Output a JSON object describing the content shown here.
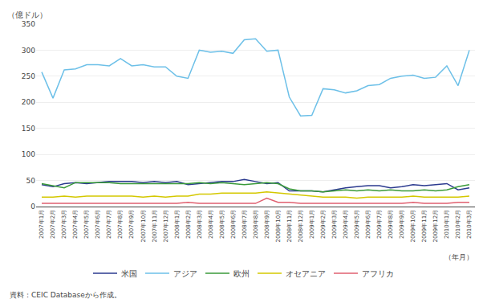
{
  "chart_data": {
    "type": "line",
    "y_label": "（億ドル）",
    "x_label": "（年月）",
    "source": "資料：CEIC Databaseから作成。",
    "ylim": [
      0,
      350
    ],
    "yticks": [
      0,
      50,
      100,
      150,
      200,
      250,
      300,
      350
    ],
    "grid": true,
    "legend": "bottom",
    "categories": [
      "2007年1月",
      "2007年2月",
      "2007年3月",
      "2007年4月",
      "2007年5月",
      "2007年6月",
      "2007年7月",
      "2007年8月",
      "2007年9月",
      "2007年10月",
      "2007年11月",
      "2007年12月",
      "2008年1月",
      "2008年2月",
      "2008年3月",
      "2008年4月",
      "2008年5月",
      "2008年6月",
      "2008年7月",
      "2008年8月",
      "2008年9月",
      "2008年10月",
      "2008年11月",
      "2008年12月",
      "2009年1月",
      "2009年2月",
      "2009年3月",
      "2009年4月",
      "2009年5月",
      "2009年6月",
      "2009年7月",
      "2009年8月",
      "2009年9月",
      "2009年10月",
      "2009年11月",
      "2009年12月",
      "2010年1月",
      "2010年2月",
      "2010年3月"
    ],
    "series": [
      {
        "name": "米国",
        "color": "#2b3a8f",
        "values": [
          42,
          38,
          44,
          46,
          44,
          46,
          48,
          48,
          48,
          46,
          48,
          46,
          48,
          42,
          44,
          46,
          48,
          48,
          52,
          48,
          44,
          46,
          30,
          30,
          30,
          28,
          32,
          36,
          38,
          40,
          40,
          36,
          38,
          42,
          40,
          42,
          44,
          32,
          36
        ]
      },
      {
        "name": "アジア",
        "color": "#6dc0e8",
        "values": [
          258,
          208,
          262,
          264,
          272,
          272,
          270,
          284,
          270,
          272,
          268,
          268,
          250,
          246,
          300,
          296,
          298,
          294,
          320,
          322,
          298,
          300,
          210,
          174,
          175,
          226,
          224,
          218,
          222,
          232,
          234,
          246,
          250,
          252,
          246,
          248,
          270,
          232,
          300
        ]
      },
      {
        "name": "欧州",
        "color": "#3a9a3a",
        "values": [
          44,
          40,
          36,
          46,
          46,
          46,
          46,
          44,
          44,
          44,
          44,
          44,
          44,
          44,
          46,
          44,
          46,
          44,
          42,
          44,
          46,
          44,
          34,
          30,
          30,
          28,
          30,
          32,
          30,
          32,
          30,
          32,
          30,
          30,
          32,
          30,
          32,
          38,
          42
        ]
      },
      {
        "name": "オセアニア",
        "color": "#d4c800",
        "values": [
          18,
          18,
          20,
          18,
          20,
          20,
          20,
          20,
          20,
          18,
          20,
          18,
          20,
          20,
          24,
          24,
          26,
          26,
          26,
          26,
          28,
          26,
          24,
          22,
          20,
          18,
          18,
          18,
          16,
          18,
          18,
          18,
          18,
          20,
          18,
          18,
          18,
          18,
          20
        ]
      },
      {
        "name": "アフリカ",
        "color": "#e06070",
        "values": [
          6,
          6,
          6,
          6,
          6,
          6,
          6,
          6,
          6,
          6,
          6,
          6,
          6,
          8,
          6,
          6,
          6,
          6,
          6,
          6,
          16,
          8,
          8,
          6,
          6,
          6,
          6,
          6,
          6,
          6,
          6,
          6,
          6,
          8,
          6,
          6,
          6,
          8,
          8
        ]
      }
    ]
  }
}
